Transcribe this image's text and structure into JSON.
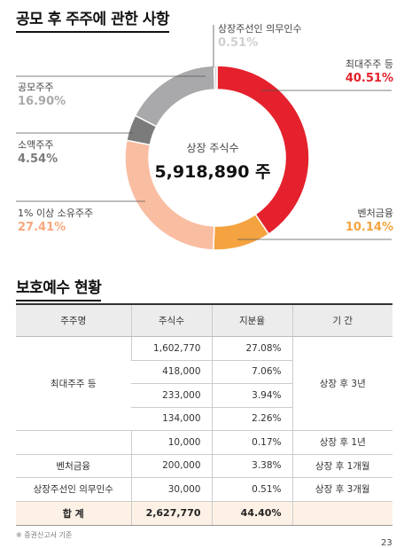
{
  "section1": {
    "title": "공모 후 주주에 관한 사항"
  },
  "chart_data": {
    "type": "pie",
    "center_label": "상장 주식수",
    "center_value": "5,918,890 주",
    "slices": [
      {
        "label": "최대주주 등",
        "value": 40.51,
        "display": "40.51%",
        "color": "#e4212c"
      },
      {
        "label": "벤처금융",
        "value": 10.14,
        "display": "10.14%",
        "color": "#f4a340"
      },
      {
        "label": "1% 이상 소유주주",
        "value": 27.41,
        "display": "27.41%",
        "color": "#f9bda2"
      },
      {
        "label": "소액주주",
        "value": 4.54,
        "display": "4.54%",
        "color": "#7b7b7b"
      },
      {
        "label": "공모주주",
        "value": 16.9,
        "display": "16.90%",
        "color": "#a9a9ab"
      },
      {
        "label": "상장주선인 의무인수",
        "value": 0.51,
        "display": "0.51%",
        "color": "#d5d5d7"
      }
    ]
  },
  "section2": {
    "title": "보호예수 현황"
  },
  "table": {
    "headers": [
      "주주명",
      "주식수",
      "지분율",
      "기 간"
    ],
    "groups": [
      {
        "name": "최대주주 등",
        "rows": [
          {
            "shares": "1,602,770",
            "pct": "27.08%"
          },
          {
            "shares": "418,000",
            "pct": "7.06%"
          },
          {
            "shares": "233,000",
            "pct": "3.94%"
          },
          {
            "shares": "134,000",
            "pct": "2.26%"
          },
          {
            "shares": "10,000",
            "pct": "0.17%"
          }
        ],
        "periods": [
          "상장 후 3년",
          "상장 후 1년"
        ]
      },
      {
        "name": "벤처금융",
        "rows": [
          {
            "shares": "200,000",
            "pct": "3.38%"
          }
        ],
        "periods": [
          "상장 후 1개월"
        ]
      },
      {
        "name": "상장주선인 의무인수",
        "rows": [
          {
            "shares": "30,000",
            "pct": "0.51%"
          }
        ],
        "periods": [
          "상장 후 3개월"
        ]
      }
    ],
    "total": {
      "label": "합 계",
      "shares": "2,627,770",
      "pct": "44.40%"
    }
  },
  "footnote": "※ 증권신고서 기준",
  "page_number": "23"
}
